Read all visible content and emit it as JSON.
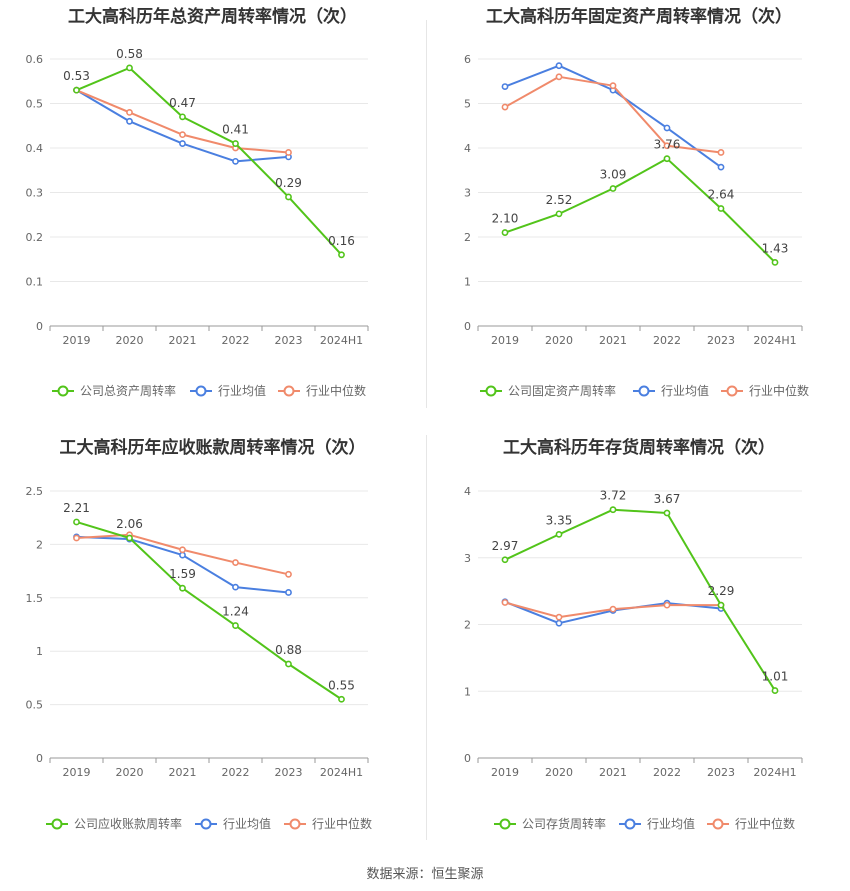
{
  "source": "数据来源：恒生聚源",
  "colors": {
    "company": "#52c41a",
    "avg": "#4a7fe0",
    "median": "#f08a6b",
    "grid": "#e8e8e8",
    "axis": "#999999",
    "text": "#666666"
  },
  "chart_data": [
    {
      "type": "line",
      "title": "工大高科历年总资产周转率情况（次）",
      "categories": [
        "2019",
        "2020",
        "2021",
        "2022",
        "2023",
        "2024H1"
      ],
      "ylim": [
        0,
        0.6
      ],
      "yticks": [
        "0",
        "0.1",
        "0.2",
        "0.3",
        "0.4",
        "0.5",
        "0.6"
      ],
      "grid": true,
      "legend_position": "bottom",
      "series": [
        {
          "name": "公司总资产周转率",
          "color": "#52c41a",
          "values": [
            0.53,
            0.58,
            0.47,
            0.41,
            0.29,
            0.16
          ],
          "labels": [
            "0.53",
            "0.58",
            "0.47",
            "0.41",
            "0.29",
            "0.16"
          ]
        },
        {
          "name": "行业均值",
          "color": "#4a7fe0",
          "values": [
            0.53,
            0.46,
            0.41,
            0.37,
            0.38,
            null
          ]
        },
        {
          "name": "行业中位数",
          "color": "#f08a6b",
          "values": [
            0.53,
            0.48,
            0.43,
            0.4,
            0.39,
            null
          ]
        }
      ]
    },
    {
      "type": "line",
      "title": "工大高科历年固定资产周转率情况（次）",
      "categories": [
        "2019",
        "2020",
        "2021",
        "2022",
        "2023",
        "2024H1"
      ],
      "ylim": [
        0,
        6
      ],
      "yticks": [
        "0",
        "1",
        "2",
        "3",
        "4",
        "5",
        "6"
      ],
      "grid": true,
      "legend_position": "bottom",
      "series": [
        {
          "name": "公司固定资产周转率",
          "color": "#52c41a",
          "values": [
            2.1,
            2.52,
            3.09,
            3.76,
            2.64,
            1.43
          ],
          "labels": [
            "2.10",
            "2.52",
            "3.09",
            "3.76",
            "2.64",
            "1.43"
          ]
        },
        {
          "name": "行业均值",
          "color": "#4a7fe0",
          "values": [
            5.38,
            5.85,
            5.3,
            4.45,
            3.57,
            null
          ]
        },
        {
          "name": "行业中位数",
          "color": "#f08a6b",
          "values": [
            4.92,
            5.6,
            5.4,
            4.05,
            3.9,
            null
          ]
        }
      ]
    },
    {
      "type": "line",
      "title": "工大高科历年应收账款周转率情况（次）",
      "categories": [
        "2019",
        "2020",
        "2021",
        "2022",
        "2023",
        "2024H1"
      ],
      "ylim": [
        0,
        2.5
      ],
      "yticks": [
        "0",
        "0.5",
        "1",
        "1.5",
        "2",
        "2.5"
      ],
      "grid": true,
      "legend_position": "bottom",
      "series": [
        {
          "name": "公司应收账款周转率",
          "color": "#52c41a",
          "values": [
            2.21,
            2.06,
            1.59,
            1.24,
            0.88,
            0.55
          ],
          "labels": [
            "2.21",
            "2.06",
            "1.59",
            "1.24",
            "0.88",
            "0.55"
          ]
        },
        {
          "name": "行业均值",
          "color": "#4a7fe0",
          "values": [
            2.07,
            2.05,
            1.9,
            1.6,
            1.55,
            null
          ]
        },
        {
          "name": "行业中位数",
          "color": "#f08a6b",
          "values": [
            2.06,
            2.09,
            1.95,
            1.83,
            1.72,
            null
          ]
        }
      ]
    },
    {
      "type": "line",
      "title": "工大高科历年存货周转率情况（次）",
      "categories": [
        "2019",
        "2020",
        "2021",
        "2022",
        "2023",
        "2024H1"
      ],
      "ylim": [
        0,
        4
      ],
      "yticks": [
        "0",
        "1",
        "2",
        "3",
        "4"
      ],
      "grid": true,
      "legend_position": "bottom",
      "series": [
        {
          "name": "公司存货周转率",
          "color": "#52c41a",
          "values": [
            2.97,
            3.35,
            3.72,
            3.67,
            2.29,
            1.01
          ],
          "labels": [
            "2.97",
            "3.35",
            "3.72",
            "3.67",
            "2.29",
            "1.01"
          ]
        },
        {
          "name": "行业均值",
          "color": "#4a7fe0",
          "values": [
            2.34,
            2.02,
            2.21,
            2.32,
            2.24,
            null
          ]
        },
        {
          "name": "行业中位数",
          "color": "#f08a6b",
          "values": [
            2.33,
            2.11,
            2.23,
            2.29,
            2.29,
            null
          ]
        }
      ]
    }
  ]
}
